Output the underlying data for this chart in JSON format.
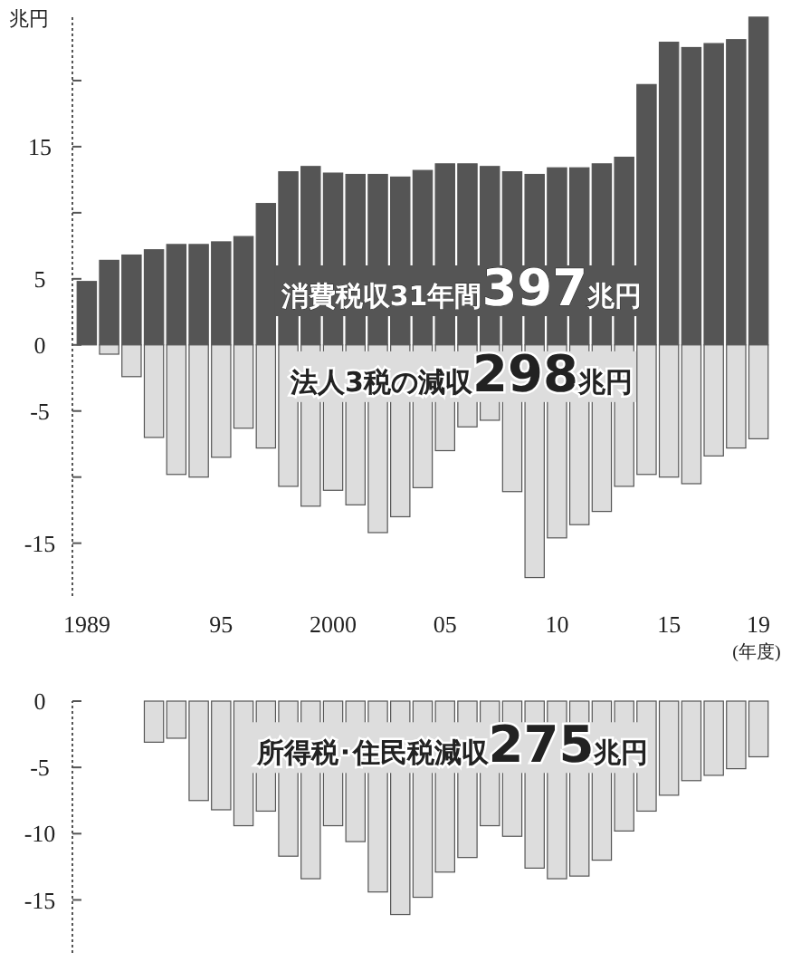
{
  "chart_data": [
    {
      "type": "bar",
      "stacked": true,
      "ylabel": "兆円",
      "xlabel": "(年度)",
      "categories": [
        "1989",
        null,
        null,
        null,
        null,
        null,
        "95",
        null,
        null,
        null,
        null,
        "2000",
        null,
        null,
        null,
        null,
        "05",
        null,
        null,
        null,
        null,
        "10",
        null,
        null,
        null,
        null,
        "15",
        null,
        null,
        null,
        "19"
      ],
      "series": [
        {
          "color": "#555555",
          "values": [
            4.8,
            6.4,
            6.8,
            7.2,
            7.6,
            7.6,
            7.8,
            8.2,
            10.7,
            13.1,
            13.5,
            13.0,
            12.9,
            12.9,
            12.7,
            13.2,
            13.7,
            13.7,
            13.5,
            13.1,
            12.9,
            13.4,
            13.4,
            13.7,
            14.2,
            19.7,
            22.9,
            22.5,
            22.8,
            23.1,
            24.8
          ]
        },
        {
          "color": "#dddddd",
          "values": [
            null,
            -0.7,
            -2.4,
            -7.0,
            -9.8,
            -10.0,
            -8.5,
            -6.3,
            -7.8,
            -10.7,
            -12.2,
            -11.0,
            -12.1,
            -14.2,
            -13.0,
            -10.8,
            -8.0,
            -6.2,
            -5.7,
            -11.1,
            -17.6,
            -14.6,
            -13.6,
            -12.6,
            -10.7,
            -9.8,
            -10.0,
            -10.5,
            -8.4,
            -7.8,
            -7.1
          ]
        }
      ],
      "ylim": [
        -19,
        25
      ],
      "yticks": [
        {
          "value": -15,
          "label": "-15"
        },
        {
          "value": -10,
          "label": null
        },
        {
          "value": -5,
          "label": "-5"
        },
        0,
        5,
        {
          "value": 10,
          "label": null
        },
        15,
        {
          "value": 20,
          "label": null
        }
      ],
      "annotations": [
        "消費税収31年間397兆円",
        "法人3税の減収298兆円"
      ]
    },
    {
      "type": "bar",
      "categories": [
        null,
        null,
        null,
        null,
        null,
        null,
        null,
        null,
        null,
        null,
        null,
        null,
        null,
        null,
        null,
        null,
        null,
        null,
        null,
        null,
        null,
        null,
        null,
        null,
        null,
        null,
        null,
        null,
        null,
        null,
        null
      ],
      "series": [
        {
          "color": "#dddddd",
          "values": [
            null,
            null,
            null,
            -3.1,
            -2.8,
            -7.5,
            -8.2,
            -9.4,
            -8.3,
            -11.7,
            -13.4,
            -9.4,
            -10.6,
            -14.4,
            -16.1,
            -14.8,
            -12.9,
            -11.8,
            -9.4,
            -10.2,
            -12.6,
            -13.4,
            -13.2,
            -12.0,
            -9.8,
            -8.3,
            -7.1,
            -6.0,
            -5.6,
            -5.1,
            -4.2
          ]
        }
      ],
      "ylim": [
        -19,
        0
      ],
      "yticks": [
        {
          "value": -15,
          "label": "-15"
        },
        {
          "value": -10,
          "label": "-10"
        },
        {
          "value": -5,
          "label": "-5"
        },
        0
      ],
      "tick_labels": "y",
      "annotations": [
        "所得税･住民税減収275兆円"
      ]
    }
  ]
}
